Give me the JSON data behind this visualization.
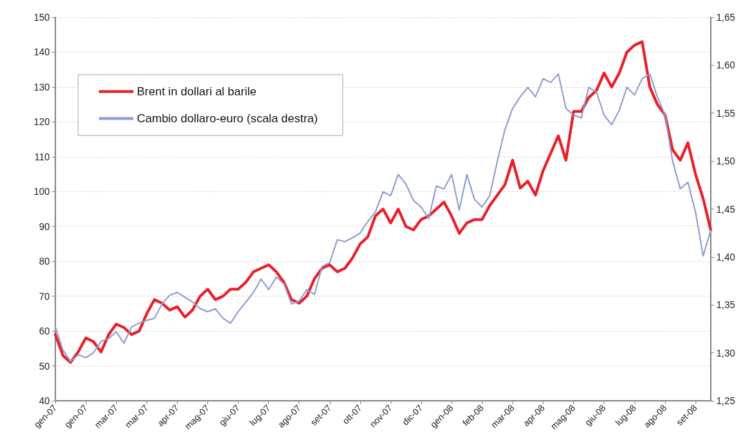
{
  "chart_data": {
    "type": "line",
    "categories": [
      "gen-07",
      null,
      null,
      null,
      "gen-07",
      null,
      null,
      null,
      "mar-07",
      null,
      null,
      null,
      "mar-07",
      null,
      null,
      null,
      "apr-07",
      null,
      null,
      null,
      "mag-07",
      null,
      null,
      null,
      "giu-07",
      null,
      null,
      null,
      "lug-07",
      null,
      null,
      null,
      "ago-07",
      null,
      null,
      null,
      "set-07",
      null,
      null,
      null,
      "ott-07",
      null,
      null,
      null,
      "nov-07",
      null,
      null,
      null,
      "dic-07",
      null,
      null,
      null,
      "gen-08",
      null,
      null,
      null,
      "feb-08",
      null,
      null,
      null,
      "mar-08",
      null,
      null,
      null,
      "apr-08",
      null,
      null,
      null,
      "mag-08",
      null,
      null,
      null,
      "giu-08",
      null,
      null,
      null,
      "lug-08",
      null,
      null,
      null,
      "ago-08",
      null,
      null,
      null,
      "set-08",
      null,
      null
    ],
    "series": [
      {
        "name": "Brent in dollari al barile",
        "color": "#e8202a",
        "values": [
          59,
          53,
          51,
          54,
          58,
          57,
          54,
          59,
          62,
          61,
          59,
          60,
          65,
          69,
          68,
          66,
          67,
          64,
          66,
          70,
          72,
          69,
          70,
          72,
          72,
          74,
          77,
          78,
          79,
          77,
          74,
          69,
          68,
          70,
          75,
          78,
          79,
          77,
          78,
          81,
          85,
          87,
          93,
          95,
          91,
          95,
          90,
          89,
          92,
          93,
          95,
          97,
          93,
          88,
          91,
          92,
          92,
          96,
          99,
          102,
          109,
          101,
          103,
          99,
          106,
          111,
          116,
          109,
          123,
          123,
          127,
          129,
          134,
          130,
          134,
          140,
          142,
          143,
          130,
          125,
          122,
          112,
          109,
          114,
          105,
          98,
          89
        ]
      },
      {
        "name": "Cambio dollaro-euro (scala destra)",
        "color": "#8f9bd0",
        "axis": "y2",
        "values": [
          1.327,
          1.303,
          1.291,
          1.298,
          1.295,
          1.3,
          1.312,
          1.315,
          1.322,
          1.31,
          1.327,
          1.331,
          1.334,
          1.336,
          1.351,
          1.36,
          1.363,
          1.358,
          1.353,
          1.346,
          1.343,
          1.346,
          1.336,
          1.331,
          1.343,
          1.353,
          1.363,
          1.377,
          1.366,
          1.379,
          1.372,
          1.351,
          1.354,
          1.366,
          1.361,
          1.39,
          1.394,
          1.418,
          1.416,
          1.42,
          1.425,
          1.437,
          1.447,
          1.468,
          1.464,
          1.486,
          1.476,
          1.459,
          1.452,
          1.44,
          1.474,
          1.471,
          1.486,
          1.449,
          1.486,
          1.46,
          1.452,
          1.464,
          1.5,
          1.533,
          1.555,
          1.567,
          1.577,
          1.567,
          1.586,
          1.582,
          1.591,
          1.555,
          1.548,
          1.545,
          1.577,
          1.572,
          1.548,
          1.538,
          1.553,
          1.577,
          1.569,
          1.586,
          1.591,
          1.567,
          1.548,
          1.5,
          1.471,
          1.478,
          1.447,
          1.401,
          1.428
        ]
      }
    ],
    "ylim": [
      40,
      150
    ],
    "yticks": [
      40,
      50,
      60,
      70,
      80,
      90,
      100,
      110,
      120,
      130,
      140,
      150
    ],
    "y2lim": [
      1.25,
      1.65
    ],
    "y2ticks": [
      {
        "value": 1.25,
        "label": "1,25"
      },
      {
        "value": 1.3,
        "label": "1,30"
      },
      {
        "value": 1.35,
        "label": "1,35"
      },
      {
        "value": 1.4,
        "label": "1,40"
      },
      {
        "value": 1.45,
        "label": "1,45"
      },
      {
        "value": 1.5,
        "label": "1,50"
      },
      {
        "value": 1.55,
        "label": "1,55"
      },
      {
        "value": 1.6,
        "label": "1,60"
      },
      {
        "value": 1.65,
        "label": "1,65"
      }
    ],
    "grid": "y",
    "legend": "top left",
    "marker": "none",
    "line_style": "solid"
  }
}
